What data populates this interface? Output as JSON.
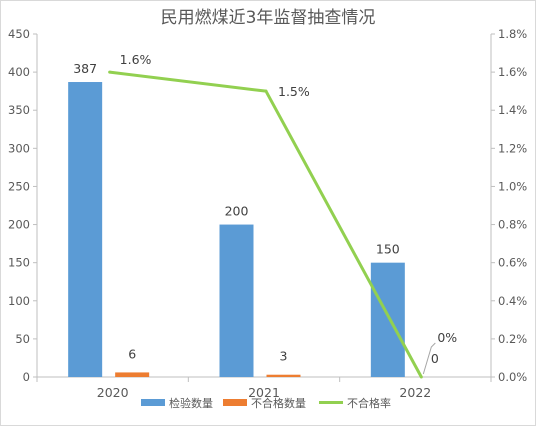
{
  "chart_data": {
    "type": "bar+line",
    "title": "民用燃煤近3年监督抽查情况",
    "categories": [
      "2020",
      "2021",
      "2022"
    ],
    "series": [
      {
        "name": "检验数量",
        "type": "bar",
        "axis": "left",
        "color": "#5b9bd5",
        "values": [
          387,
          200,
          150
        ],
        "labels": [
          "387",
          "200",
          "150"
        ]
      },
      {
        "name": "不合格数量",
        "type": "bar",
        "axis": "left",
        "color": "#ed7d31",
        "values": [
          6,
          3,
          0
        ],
        "labels": [
          "6",
          "3",
          "0"
        ]
      },
      {
        "name": "不合格率",
        "type": "line",
        "axis": "right",
        "color": "#92d050",
        "values": [
          1.6,
          1.5,
          0
        ],
        "labels": [
          "1.6%",
          "1.5%",
          "0%"
        ]
      }
    ],
    "y_left": {
      "min": 0,
      "max": 450,
      "ticks": [
        "0",
        "50",
        "100",
        "150",
        "200",
        "250",
        "300",
        "350",
        "400",
        "450"
      ]
    },
    "y_right": {
      "min": 0,
      "max": 1.8,
      "ticks": [
        "0.0%",
        "0.2%",
        "0.4%",
        "0.6%",
        "0.8%",
        "1.0%",
        "1.2%",
        "1.4%",
        "1.6%",
        "1.8%"
      ]
    },
    "grid": false,
    "legend": "bottom",
    "colors": {
      "axis": "#bfbfbf",
      "text": "#595959",
      "label": "#404040"
    }
  }
}
